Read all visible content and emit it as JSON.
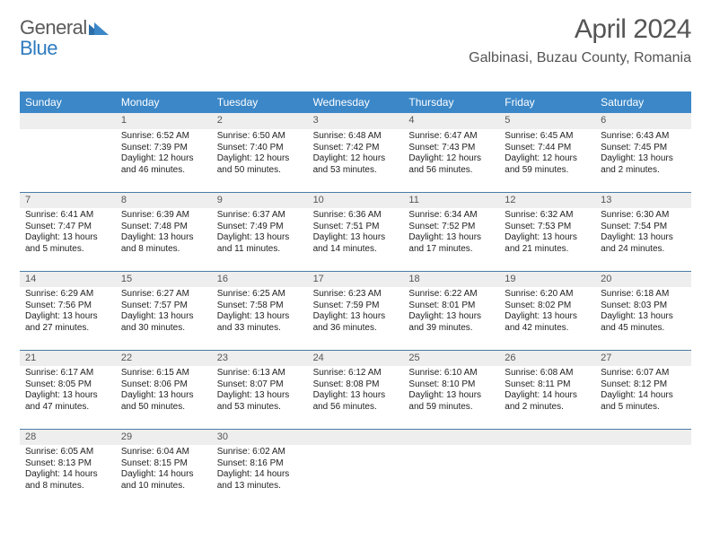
{
  "brand": {
    "part1": "General",
    "part2": "Blue"
  },
  "header": {
    "month_title": "April 2024",
    "location": "Galbinasi, Buzau County, Romania"
  },
  "colors": {
    "header_bg": "#3b87c8",
    "header_text": "#ffffff",
    "datebar_bg": "#eeeeee",
    "datebar_border": "#4a7ba8",
    "text": "#222222",
    "title_text": "#555555",
    "brand_gray": "#5a5a5a",
    "brand_blue": "#2f7bbf",
    "logo_tri1": "#2c6ea8",
    "logo_tri2": "#3b87c8"
  },
  "day_names": [
    "Sunday",
    "Monday",
    "Tuesday",
    "Wednesday",
    "Thursday",
    "Friday",
    "Saturday"
  ],
  "weeks": [
    [
      {
        "date": "",
        "sunrise": "",
        "sunset": "",
        "daylight": ""
      },
      {
        "date": "1",
        "sunrise": "Sunrise: 6:52 AM",
        "sunset": "Sunset: 7:39 PM",
        "daylight": "Daylight: 12 hours and 46 minutes."
      },
      {
        "date": "2",
        "sunrise": "Sunrise: 6:50 AM",
        "sunset": "Sunset: 7:40 PM",
        "daylight": "Daylight: 12 hours and 50 minutes."
      },
      {
        "date": "3",
        "sunrise": "Sunrise: 6:48 AM",
        "sunset": "Sunset: 7:42 PM",
        "daylight": "Daylight: 12 hours and 53 minutes."
      },
      {
        "date": "4",
        "sunrise": "Sunrise: 6:47 AM",
        "sunset": "Sunset: 7:43 PM",
        "daylight": "Daylight: 12 hours and 56 minutes."
      },
      {
        "date": "5",
        "sunrise": "Sunrise: 6:45 AM",
        "sunset": "Sunset: 7:44 PM",
        "daylight": "Daylight: 12 hours and 59 minutes."
      },
      {
        "date": "6",
        "sunrise": "Sunrise: 6:43 AM",
        "sunset": "Sunset: 7:45 PM",
        "daylight": "Daylight: 13 hours and 2 minutes."
      }
    ],
    [
      {
        "date": "7",
        "sunrise": "Sunrise: 6:41 AM",
        "sunset": "Sunset: 7:47 PM",
        "daylight": "Daylight: 13 hours and 5 minutes."
      },
      {
        "date": "8",
        "sunrise": "Sunrise: 6:39 AM",
        "sunset": "Sunset: 7:48 PM",
        "daylight": "Daylight: 13 hours and 8 minutes."
      },
      {
        "date": "9",
        "sunrise": "Sunrise: 6:37 AM",
        "sunset": "Sunset: 7:49 PM",
        "daylight": "Daylight: 13 hours and 11 minutes."
      },
      {
        "date": "10",
        "sunrise": "Sunrise: 6:36 AM",
        "sunset": "Sunset: 7:51 PM",
        "daylight": "Daylight: 13 hours and 14 minutes."
      },
      {
        "date": "11",
        "sunrise": "Sunrise: 6:34 AM",
        "sunset": "Sunset: 7:52 PM",
        "daylight": "Daylight: 13 hours and 17 minutes."
      },
      {
        "date": "12",
        "sunrise": "Sunrise: 6:32 AM",
        "sunset": "Sunset: 7:53 PM",
        "daylight": "Daylight: 13 hours and 21 minutes."
      },
      {
        "date": "13",
        "sunrise": "Sunrise: 6:30 AM",
        "sunset": "Sunset: 7:54 PM",
        "daylight": "Daylight: 13 hours and 24 minutes."
      }
    ],
    [
      {
        "date": "14",
        "sunrise": "Sunrise: 6:29 AM",
        "sunset": "Sunset: 7:56 PM",
        "daylight": "Daylight: 13 hours and 27 minutes."
      },
      {
        "date": "15",
        "sunrise": "Sunrise: 6:27 AM",
        "sunset": "Sunset: 7:57 PM",
        "daylight": "Daylight: 13 hours and 30 minutes."
      },
      {
        "date": "16",
        "sunrise": "Sunrise: 6:25 AM",
        "sunset": "Sunset: 7:58 PM",
        "daylight": "Daylight: 13 hours and 33 minutes."
      },
      {
        "date": "17",
        "sunrise": "Sunrise: 6:23 AM",
        "sunset": "Sunset: 7:59 PM",
        "daylight": "Daylight: 13 hours and 36 minutes."
      },
      {
        "date": "18",
        "sunrise": "Sunrise: 6:22 AM",
        "sunset": "Sunset: 8:01 PM",
        "daylight": "Daylight: 13 hours and 39 minutes."
      },
      {
        "date": "19",
        "sunrise": "Sunrise: 6:20 AM",
        "sunset": "Sunset: 8:02 PM",
        "daylight": "Daylight: 13 hours and 42 minutes."
      },
      {
        "date": "20",
        "sunrise": "Sunrise: 6:18 AM",
        "sunset": "Sunset: 8:03 PM",
        "daylight": "Daylight: 13 hours and 45 minutes."
      }
    ],
    [
      {
        "date": "21",
        "sunrise": "Sunrise: 6:17 AM",
        "sunset": "Sunset: 8:05 PM",
        "daylight": "Daylight: 13 hours and 47 minutes."
      },
      {
        "date": "22",
        "sunrise": "Sunrise: 6:15 AM",
        "sunset": "Sunset: 8:06 PM",
        "daylight": "Daylight: 13 hours and 50 minutes."
      },
      {
        "date": "23",
        "sunrise": "Sunrise: 6:13 AM",
        "sunset": "Sunset: 8:07 PM",
        "daylight": "Daylight: 13 hours and 53 minutes."
      },
      {
        "date": "24",
        "sunrise": "Sunrise: 6:12 AM",
        "sunset": "Sunset: 8:08 PM",
        "daylight": "Daylight: 13 hours and 56 minutes."
      },
      {
        "date": "25",
        "sunrise": "Sunrise: 6:10 AM",
        "sunset": "Sunset: 8:10 PM",
        "daylight": "Daylight: 13 hours and 59 minutes."
      },
      {
        "date": "26",
        "sunrise": "Sunrise: 6:08 AM",
        "sunset": "Sunset: 8:11 PM",
        "daylight": "Daylight: 14 hours and 2 minutes."
      },
      {
        "date": "27",
        "sunrise": "Sunrise: 6:07 AM",
        "sunset": "Sunset: 8:12 PM",
        "daylight": "Daylight: 14 hours and 5 minutes."
      }
    ],
    [
      {
        "date": "28",
        "sunrise": "Sunrise: 6:05 AM",
        "sunset": "Sunset: 8:13 PM",
        "daylight": "Daylight: 14 hours and 8 minutes."
      },
      {
        "date": "29",
        "sunrise": "Sunrise: 6:04 AM",
        "sunset": "Sunset: 8:15 PM",
        "daylight": "Daylight: 14 hours and 10 minutes."
      },
      {
        "date": "30",
        "sunrise": "Sunrise: 6:02 AM",
        "sunset": "Sunset: 8:16 PM",
        "daylight": "Daylight: 14 hours and 13 minutes."
      },
      {
        "date": "",
        "sunrise": "",
        "sunset": "",
        "daylight": ""
      },
      {
        "date": "",
        "sunrise": "",
        "sunset": "",
        "daylight": ""
      },
      {
        "date": "",
        "sunrise": "",
        "sunset": "",
        "daylight": ""
      },
      {
        "date": "",
        "sunrise": "",
        "sunset": "",
        "daylight": ""
      }
    ]
  ]
}
